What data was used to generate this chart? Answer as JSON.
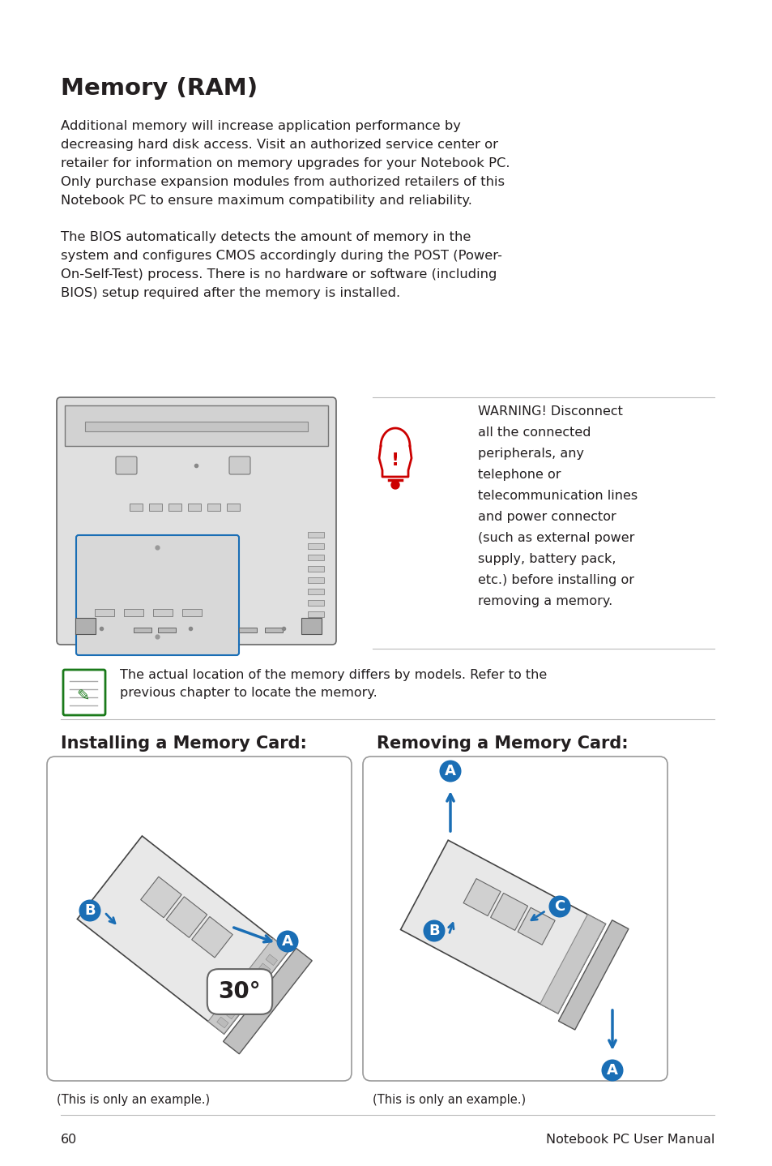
{
  "title": "Memory (RAM)",
  "para1_lines": [
    "Additional memory will increase application performance by",
    "decreasing hard disk access. Visit an authorized service center or",
    "retailer for information on memory upgrades for your Notebook PC.",
    "Only purchase expansion modules from authorized retailers of this",
    "Notebook PC to ensure maximum compatibility and reliability."
  ],
  "para2_lines": [
    "The BIOS automatically detects the amount of memory in the",
    "system and configures CMOS accordingly during the POST (Power-",
    "On-Self-Test) process. There is no hardware or software (including",
    "BIOS) setup required after the memory is installed."
  ],
  "warning_lines": [
    "WARNING! Disconnect",
    "all the connected",
    "peripherals, any",
    "telephone or",
    "telecommunication lines",
    "and power connector",
    "(such as external power",
    "supply, battery pack,",
    "etc.) before installing or",
    "removing a memory."
  ],
  "note_line1": "The actual location of the memory differs by models. Refer to the",
  "note_line2": "previous chapter to locate the memory.",
  "install_title": "Installing a Memory Card:",
  "remove_title": "Removing a Memory Card:",
  "install_caption": "(This is only an example.)",
  "remove_caption": "(This is only an example.)",
  "page_number": "60",
  "footer_text": "Notebook PC User Manual",
  "bg_color": "#ffffff",
  "text_color": "#231f20",
  "title_color": "#000000",
  "warn_red": "#cc0000",
  "note_green": "#1a7a1a",
  "blue_color": "#1a6eb5"
}
